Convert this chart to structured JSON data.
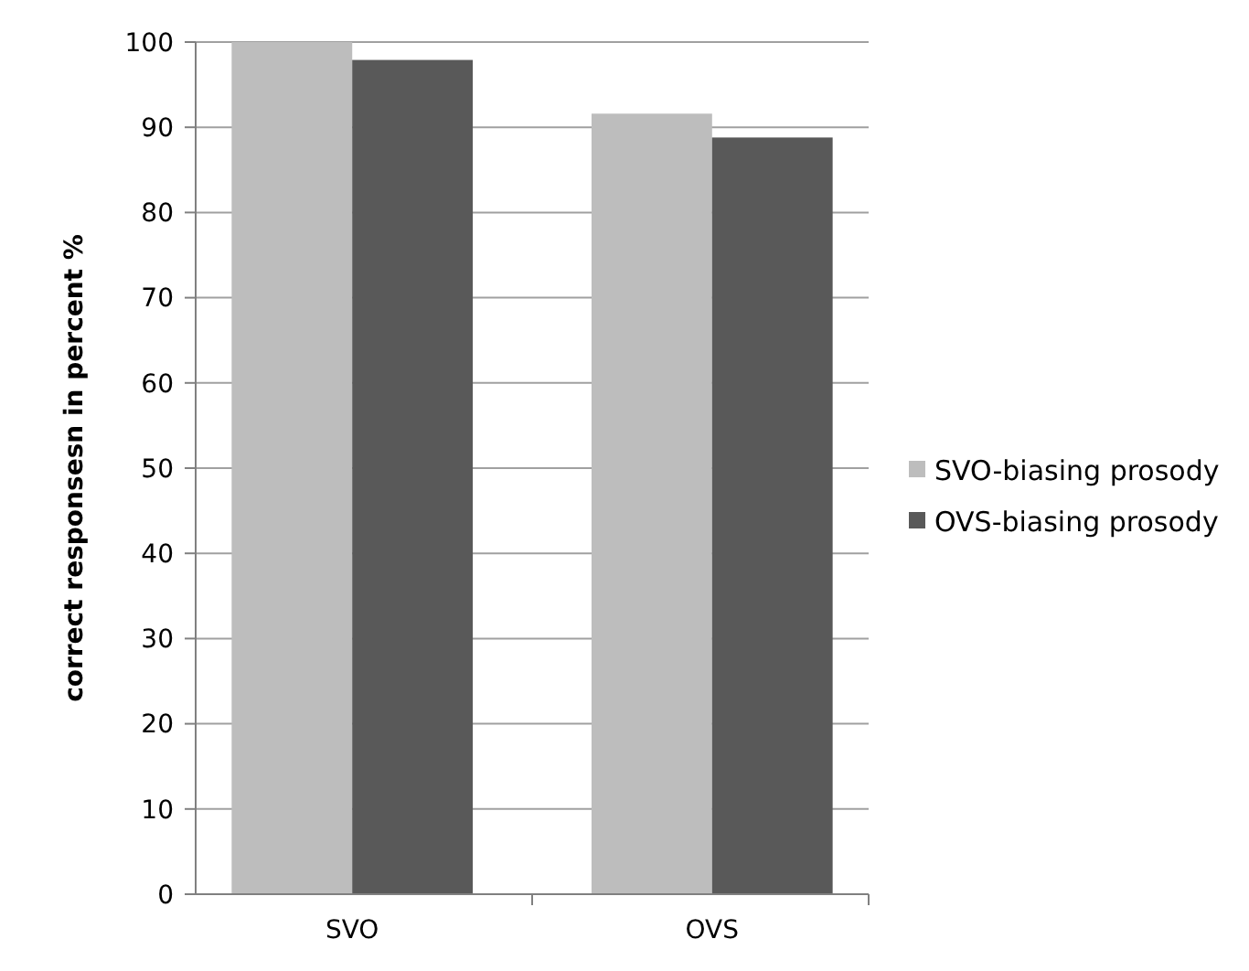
{
  "chart_data": {
    "type": "bar",
    "ylabel": "correct responsesn in percent %",
    "categories": [
      "SVO",
      "OVS"
    ],
    "series": [
      {
        "name": "SVO-biasing prosody",
        "color": "#bdbdbd",
        "values": [
          100,
          91.6
        ]
      },
      {
        "name": "OVS-biasing prosody",
        "color": "#595959",
        "values": [
          97.9,
          88.8
        ]
      }
    ],
    "ylim": [
      0,
      100
    ],
    "yticks": [
      0,
      10,
      20,
      30,
      40,
      50,
      60,
      70,
      80,
      90,
      100
    ],
    "grid": "y",
    "legend": "right"
  }
}
